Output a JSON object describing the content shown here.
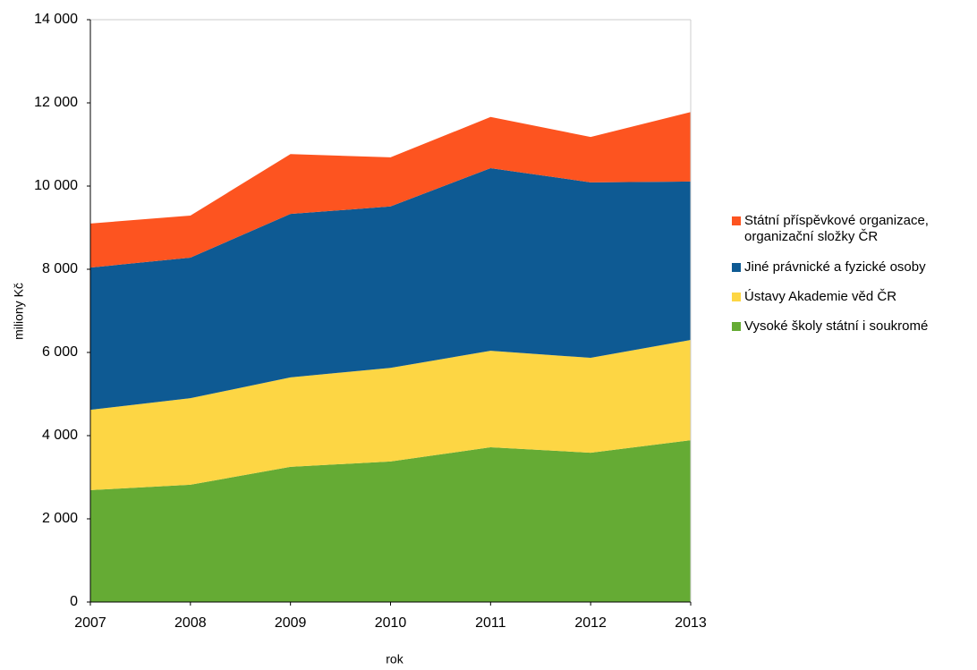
{
  "chart_data": {
    "type": "stacked-area",
    "x": [
      2007,
      2008,
      2009,
      2010,
      2011,
      2012,
      2013
    ],
    "xlim": [
      2007,
      2013
    ],
    "xticks": [
      2007,
      2008,
      2009,
      2010,
      2011,
      2012,
      2013
    ],
    "ylim": [
      0,
      14000
    ],
    "yticks": [
      0,
      {
        "value": 2000,
        "label": "2 000"
      },
      {
        "value": 4000,
        "label": "4 000"
      },
      {
        "value": 6000,
        "label": "6 000"
      },
      {
        "value": 8000,
        "label": "8 000"
      },
      {
        "value": 10000,
        "label": "10 000"
      },
      {
        "value": 12000,
        "label": "12 000"
      },
      {
        "value": 14000,
        "label": "14 000"
      }
    ],
    "y_label": "miliony Kč",
    "x_label": "rok",
    "series": [
      {
        "name": "Vysoké školy státní i soukromé",
        "color": "#65ab34",
        "values": [
          2690,
          2820,
          3250,
          3380,
          3720,
          3590,
          3890
        ]
      },
      {
        "name": "Ústavy Akademie věd ČR",
        "color": "#fdd644",
        "values": [
          1930,
          2080,
          2150,
          2250,
          2320,
          2280,
          2410
        ]
      },
      {
        "name": "Jiné právnické a fyzické osoby",
        "color": "#0e5a93",
        "values": [
          3420,
          3380,
          3930,
          3880,
          4390,
          4220,
          3810
        ]
      },
      {
        "name": "Státní příspěvkové organizace, organizační složky ČR",
        "color": "#fd5420",
        "values": [
          1060,
          1010,
          1440,
          1180,
          1230,
          1090,
          1670
        ]
      }
    ]
  }
}
